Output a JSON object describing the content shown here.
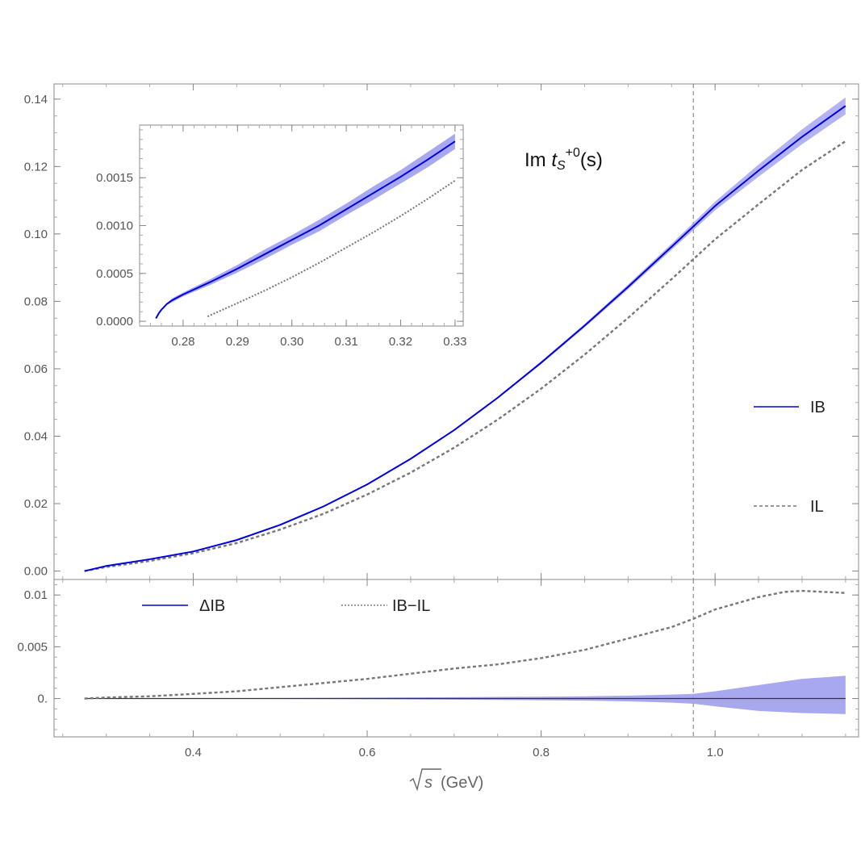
{
  "chart_data": [
    {
      "id": "main",
      "type": "line",
      "title_parts": {
        "base": "Im ",
        "t": "t",
        "sub": "S",
        "sup": "+0",
        "tail": "(s)"
      },
      "xlabel_parts": {
        "sqrt_var": "s",
        "unit": " (GeV)"
      },
      "xlim": [
        0.24,
        1.165
      ],
      "ylim": [
        -0.0025,
        0.1445
      ],
      "x_ticks": [
        0.4,
        0.6,
        0.8,
        1.0
      ],
      "x_tick_labels": [
        "0.4",
        "0.6",
        "0.8",
        "1.0"
      ],
      "y_ticks": [
        0.0,
        0.02,
        0.04,
        0.06,
        0.08,
        0.1,
        0.12,
        0.14
      ],
      "y_tick_labels": [
        "0.00",
        "0.02",
        "0.04",
        "0.06",
        "0.08",
        "0.10",
        "0.12",
        "0.14"
      ],
      "vline_x": 0.975,
      "legend": [
        "IB",
        "IL"
      ],
      "series": [
        {
          "name": "IB",
          "color": "#0000dd",
          "band_color": "#9999ee",
          "x": [
            0.275,
            0.3,
            0.35,
            0.4,
            0.45,
            0.5,
            0.55,
            0.6,
            0.65,
            0.7,
            0.75,
            0.8,
            0.85,
            0.9,
            0.95,
            0.975,
            1.0,
            1.05,
            1.1,
            1.15
          ],
          "y": [
            0.0,
            0.0015,
            0.0035,
            0.0058,
            0.0092,
            0.0137,
            0.0192,
            0.0257,
            0.0333,
            0.0418,
            0.0514,
            0.0618,
            0.0728,
            0.0843,
            0.0962,
            0.1022,
            0.1083,
            0.1188,
            0.1288,
            0.138
          ],
          "band": [
            0.0,
            0.0,
            0.0,
            0.0,
            0.0,
            0.0001,
            0.0001,
            0.0001,
            0.0002,
            0.0002,
            0.0003,
            0.0004,
            0.0005,
            0.0007,
            0.0009,
            0.0011,
            0.0013,
            0.0018,
            0.0022,
            0.0025
          ]
        },
        {
          "name": "IL",
          "color": "#777777",
          "x": [
            0.275,
            0.3,
            0.35,
            0.4,
            0.45,
            0.5,
            0.55,
            0.6,
            0.65,
            0.7,
            0.75,
            0.8,
            0.85,
            0.9,
            0.95,
            0.975,
            1.0,
            1.05,
            1.1,
            1.15
          ],
          "y": [
            0.0,
            0.0012,
            0.003,
            0.0053,
            0.0083,
            0.0123,
            0.017,
            0.0227,
            0.0292,
            0.0366,
            0.0449,
            0.0541,
            0.0642,
            0.0751,
            0.0866,
            0.0925,
            0.0984,
            0.1088,
            0.119,
            0.1275
          ]
        }
      ]
    },
    {
      "id": "inset",
      "type": "line",
      "xlim": [
        0.272,
        0.3315
      ],
      "ylim": [
        -5e-05,
        0.00205
      ],
      "x_ticks": [
        0.28,
        0.29,
        0.3,
        0.31,
        0.32,
        0.33
      ],
      "x_tick_labels": [
        "0.28",
        "0.29",
        "0.30",
        "0.31",
        "0.32",
        "0.33"
      ],
      "y_ticks": [
        0.0,
        0.0005,
        0.001,
        0.0015
      ],
      "y_tick_labels": [
        "0.0000",
        "0.0005",
        "0.0010",
        "0.0015"
      ],
      "series": [
        {
          "name": "IB",
          "color": "#0000dd",
          "band_color": "#9999ee",
          "x": [
            0.275,
            0.2755,
            0.276,
            0.277,
            0.278,
            0.28,
            0.285,
            0.29,
            0.295,
            0.3,
            0.305,
            0.31,
            0.315,
            0.32,
            0.325,
            0.33
          ],
          "y": [
            3e-05,
            8e-05,
            0.00012,
            0.00018,
            0.00022,
            0.00028,
            0.00041,
            0.00055,
            0.0007,
            0.00085,
            0.001,
            0.00117,
            0.00134,
            0.00151,
            0.00169,
            0.00188
          ],
          "band": [
            0.0,
            1e-05,
            1e-05,
            1e-05,
            2e-05,
            2e-05,
            3e-05,
            4e-05,
            5e-05,
            5e-05,
            6e-05,
            6e-05,
            7e-05,
            7e-05,
            8e-05,
            8e-05
          ]
        },
        {
          "name": "IL",
          "color": "#777777",
          "x": [
            0.2845,
            0.29,
            0.295,
            0.3,
            0.305,
            0.31,
            0.315,
            0.32,
            0.325,
            0.33
          ],
          "y": [
            5e-05,
            0.00019,
            0.00032,
            0.00046,
            0.00061,
            0.00077,
            0.00093,
            0.0011,
            0.00128,
            0.00147
          ]
        }
      ]
    },
    {
      "id": "lower",
      "type": "line",
      "xlim": [
        0.24,
        1.165
      ],
      "ylim": [
        -0.0037,
        0.0115
      ],
      "y_ticks": [
        0.0,
        0.005,
        0.01
      ],
      "y_tick_labels": [
        "0.",
        "0.005",
        "0.01"
      ],
      "zero_line": true,
      "vline_x": 0.975,
      "legend": [
        "ΔIB",
        "IB−IL"
      ],
      "series": [
        {
          "name": "ΔIB",
          "color": "#0000dd",
          "band_color": "#9999ee",
          "x": [
            0.275,
            0.4,
            0.5,
            0.6,
            0.7,
            0.8,
            0.85,
            0.9,
            0.95,
            0.975,
            1.0,
            1.05,
            1.1,
            1.15
          ],
          "upper": [
            0.0,
            2e-05,
            5e-05,
            9e-05,
            0.00013,
            0.00018,
            0.00022,
            0.00028,
            0.00038,
            0.00045,
            0.0007,
            0.0013,
            0.0019,
            0.0022
          ],
          "lower": [
            0.0,
            -2e-05,
            -4e-05,
            -7e-05,
            -0.0001,
            -0.00016,
            -0.0002,
            -0.00027,
            -0.0004,
            -0.0005,
            -0.00075,
            -0.0012,
            -0.0014,
            -0.0015
          ]
        },
        {
          "name": "IB−IL",
          "color": "#777777",
          "x": [
            0.275,
            0.3,
            0.35,
            0.4,
            0.45,
            0.5,
            0.55,
            0.6,
            0.65,
            0.7,
            0.75,
            0.8,
            0.85,
            0.9,
            0.95,
            0.975,
            1.0,
            1.05,
            1.08,
            1.1,
            1.125,
            1.15
          ],
          "y": [
            0.0,
            0.0001,
            0.00022,
            0.00045,
            0.0007,
            0.0011,
            0.0015,
            0.0019,
            0.0024,
            0.0029,
            0.0033,
            0.0039,
            0.0047,
            0.0058,
            0.0069,
            0.0077,
            0.0086,
            0.0098,
            0.0103,
            0.0104,
            0.0103,
            0.0102
          ]
        }
      ]
    }
  ]
}
